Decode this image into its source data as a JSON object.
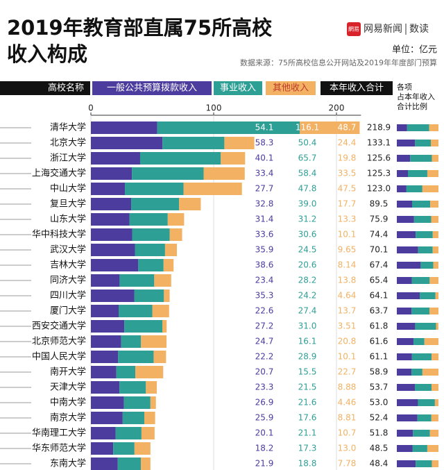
{
  "chart_data": {
    "type": "stacked_barh",
    "title_lines": [
      "2019年教育部直属75所高校",
      "收入构成"
    ],
    "brand": {
      "icon": "網易",
      "name": "网易新闻",
      "section": "数读"
    },
    "unit": "单位：亿元",
    "source": "数据来源：75所高校信息公开网站及2019年年度部门预算",
    "category_label": "高校名称",
    "categories": [
      "清华大学",
      "北京大学",
      "浙江大学",
      "上海交通大学",
      "中山大学",
      "复旦大学",
      "山东大学",
      "华中科技大学",
      "武汉大学",
      "吉林大学",
      "同济大学",
      "四川大学",
      "厦门大学",
      "西安交通大学",
      "北京师范大学",
      "中国人民大学",
      "南开大学",
      "天津大学",
      "中南大学",
      "南京大学",
      "华南理工大学",
      "华东师范大学",
      "东南大学"
    ],
    "series": [
      {
        "name": "一般公共预算拨款收入",
        "color": "#4b3c9e",
        "values": [
          54.1,
          58.3,
          40.1,
          33.4,
          27.7,
          32.8,
          31.4,
          33.6,
          35.9,
          38.6,
          23.4,
          35.3,
          22.6,
          27.2,
          24.7,
          22.2,
          20.7,
          23.3,
          26.9,
          25.9,
          20.1,
          18.2,
          21.9
        ],
        "value_labels": [
          "54.1",
          "58.3",
          "40.1",
          "33.4",
          "27.7",
          "32.8",
          "31.4",
          "33.6",
          "35.9",
          "38.6",
          "23.4",
          "35.3",
          "22.6",
          "27.2",
          "24.7",
          "22.2",
          "20.7",
          "23.3",
          "26.9",
          "25.9",
          "20.1",
          "18.2",
          "21.9"
        ]
      },
      {
        "name": "事业收入",
        "color": "#2e9f95",
        "values": [
          116.1,
          50.4,
          65.7,
          58.4,
          47.8,
          39.0,
          31.2,
          30.6,
          24.5,
          20.6,
          28.2,
          24.2,
          27.4,
          31.0,
          16.1,
          28.9,
          15.5,
          21.5,
          21.6,
          17.6,
          21.1,
          17.3,
          18.8
        ],
        "value_labels": [
          "116.1",
          "50.4",
          "65.7",
          "58.4",
          "47.8",
          "39.0",
          "31.2",
          "30.6",
          "24.5",
          "20.6",
          "28.2",
          "24.2",
          "27.4",
          "31.0",
          "16.1",
          "28.9",
          "15.5",
          "21.5",
          "21.6",
          "17.6",
          "21.1",
          "17.3",
          "18.8"
        ]
      },
      {
        "name": "其他收入",
        "color": "#f2b163",
        "values": [
          48.7,
          24.4,
          19.8,
          33.5,
          47.5,
          17.7,
          13.3,
          10.1,
          9.65,
          8.14,
          13.8,
          4.64,
          13.7,
          3.51,
          20.8,
          10.1,
          22.7,
          8.88,
          4.46,
          8.81,
          10.7,
          13.0,
          7.78
        ],
        "value_labels": [
          "48.7",
          "24.4",
          "19.8",
          "33.5",
          "47.5",
          "17.7",
          "13.3",
          "10.1",
          "9.65",
          "8.14",
          "13.8",
          "4.64",
          "13.7",
          "3.51",
          "20.8",
          "10.1",
          "22.7",
          "8.88",
          "4.46",
          "8.81",
          "10.7",
          "13.0",
          "7.78"
        ]
      }
    ],
    "total": {
      "name": "本年收入合计",
      "values": [
        218.9,
        133.1,
        125.6,
        125.3,
        123.0,
        89.5,
        75.9,
        74.4,
        70.1,
        67.4,
        65.4,
        64.1,
        63.7,
        61.8,
        61.6,
        61.1,
        58.9,
        53.7,
        53.0,
        52.4,
        51.8,
        48.5,
        48.4
      ],
      "value_labels": [
        "218.9",
        "133.1",
        "125.6",
        "125.3",
        "123.0",
        "89.5",
        "75.9",
        "74.4",
        "70.1",
        "67.4",
        "65.4",
        "64.1",
        "63.7",
        "61.8",
        "61.6",
        "61.1",
        "58.9",
        "53.7",
        "53.0",
        "52.4",
        "51.8",
        "48.5",
        "48.4"
      ]
    },
    "share_label_lines": [
      "各项",
      "占本年收入",
      "合计比例"
    ],
    "xlim": [
      0,
      220
    ],
    "xticks": [
      0,
      100,
      200
    ]
  }
}
